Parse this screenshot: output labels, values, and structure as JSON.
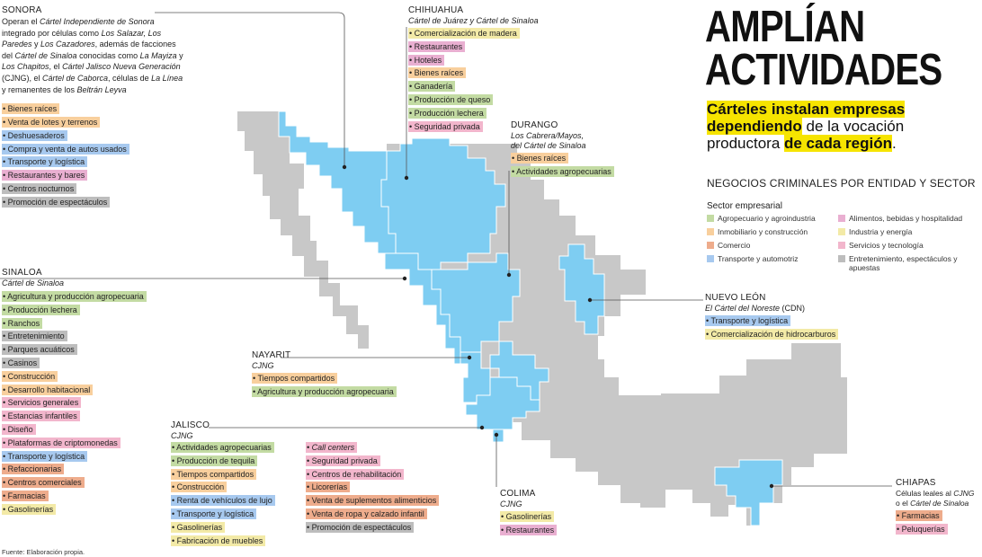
{
  "headline": {
    "title_line1": "AMPLÍAN",
    "title_line2": "ACTIVIDADES",
    "sub_hl1": "Cárteles instalan empresas",
    "sub_hl2": "dependiendo",
    "sub_mid": " de la vocación productora ",
    "sub_hl3": "de cada región",
    "sub_end": "."
  },
  "legend": {
    "section_title": "NEGOCIOS CRIMINALES POR ENTIDAD Y SECTOR",
    "title": "Sector empresarial",
    "items": [
      {
        "label": "Agropecuario y agroindustria",
        "color": "#c3dba3"
      },
      {
        "label": "Inmobiliario y construcción",
        "color": "#f8cf9d"
      },
      {
        "label": "Comercio",
        "color": "#eeac8c"
      },
      {
        "label": "Transporte y automotriz",
        "color": "#a7c9ef"
      },
      {
        "label": "Alimentos, bebidas y hospitalidad",
        "color": "#e9afd1"
      },
      {
        "label": "Industria y energía",
        "color": "#f3eaa7"
      },
      {
        "label": "Servicios y tecnología",
        "color": "#f2b6cc"
      },
      {
        "label": "Entretenimiento, espectáculos y apuestas",
        "color": "#bdbdbd"
      }
    ]
  },
  "colors": {
    "highlight_state": "#7ecdf2",
    "other_state": "#c8c8c8",
    "headline_highlight": "#f6e400"
  },
  "regions": {
    "sonora": {
      "name": "SONORA",
      "desc": [
        {
          "t": "Operan el "
        },
        {
          "t": "Cártel Independiente de Sonora",
          "i": true
        },
        {
          "t": " integrado por células como "
        },
        {
          "t": "Los Salazar, Los Paredes",
          "i": true
        },
        {
          "t": " y "
        },
        {
          "t": "Los Cazadores",
          "i": true
        },
        {
          "t": ", además de facciones del "
        },
        {
          "t": "Cártel de Sinaloa",
          "i": true
        },
        {
          "t": " conocidas como "
        },
        {
          "t": "La Mayiza",
          "i": true
        },
        {
          "t": " y "
        },
        {
          "t": "Los Chapitos",
          "i": true
        },
        {
          "t": ", el "
        },
        {
          "t": "Cártel Jalisco Nueva Generación",
          "i": true
        },
        {
          "t": " (CJNG), el "
        },
        {
          "t": "Cártel de Caborca",
          "i": true
        },
        {
          "t": ", células de "
        },
        {
          "t": "La Línea",
          "i": true
        },
        {
          "t": " y remanentes de los "
        },
        {
          "t": "Beltrán Leyva",
          "i": true
        }
      ],
      "tags": [
        {
          "label": "Bienes raíces",
          "sector": "inmo"
        },
        {
          "label": "Venta de lotes y terrenos",
          "sector": "inmo"
        },
        {
          "label": "Deshuesaderos",
          "sector": "trans"
        },
        {
          "label": "Compra y venta de autos usados",
          "sector": "trans"
        },
        {
          "label": "Transporte y logística",
          "sector": "trans"
        },
        {
          "label": "Restaurantes y bares",
          "sector": "ali"
        },
        {
          "label": "Centros nocturnos",
          "sector": "ent"
        },
        {
          "label": "Promoción de espectáculos",
          "sector": "ent"
        }
      ]
    },
    "chihuahua": {
      "name": "CHIHUAHUA",
      "cartel": "Cártel de Juárez y Cártel de Sinaloa",
      "tags": [
        {
          "label": "Comercialización de madera",
          "sector": "ind"
        },
        {
          "label": "Restaurantes",
          "sector": "ali"
        },
        {
          "label": "Hoteles",
          "sector": "ali"
        },
        {
          "label": "Bienes raíces",
          "sector": "inmo"
        },
        {
          "label": "Ganadería",
          "sector": "agro"
        },
        {
          "label": "Producción de queso",
          "sector": "agro"
        },
        {
          "label": "Producción lechera",
          "sector": "agro"
        },
        {
          "label": "Seguridad privada",
          "sector": "serv"
        }
      ]
    },
    "durango": {
      "name": "DURANGO",
      "cartel_lines": [
        "Los Cabrera/Mayos,",
        "del Cártel de Sinaloa"
      ],
      "tags": [
        {
          "label": "Bienes raíces",
          "sector": "inmo"
        },
        {
          "label": "Actividades agropecuarias",
          "sector": "agro"
        }
      ]
    },
    "sinaloa": {
      "name": "SINALOA",
      "cartel": "Cártel de Sinaloa",
      "tags": [
        {
          "label": "Agricultura y producción agropecuaria",
          "sector": "agro"
        },
        {
          "label": "Producción lechera",
          "sector": "agro"
        },
        {
          "label": "Ranchos",
          "sector": "agro"
        },
        {
          "label": "Entretenimiento",
          "sector": "ent"
        },
        {
          "label": "Parques acuáticos",
          "sector": "ent"
        },
        {
          "label": "Casinos",
          "sector": "ent"
        },
        {
          "label": "Construcción",
          "sector": "inmo"
        },
        {
          "label": "Desarrollo habitacional",
          "sector": "inmo"
        },
        {
          "label": "Servicios generales",
          "sector": "serv"
        },
        {
          "label": "Estancias infantiles",
          "sector": "serv"
        },
        {
          "label": "Diseño",
          "sector": "serv"
        },
        {
          "label": "Plataformas de criptomonedas",
          "sector": "serv"
        },
        {
          "label": "Transporte y logística",
          "sector": "trans"
        },
        {
          "label": "Refaccionarias",
          "sector": "com"
        },
        {
          "label": "Centros comerciales",
          "sector": "com"
        },
        {
          "label": "Farmacias",
          "sector": "com"
        },
        {
          "label": "Gasolinerías",
          "sector": "ind"
        }
      ]
    },
    "nayarit": {
      "name": "NAYARIT",
      "cartel": "CJNG",
      "tags": [
        {
          "label": "Tiempos compartidos",
          "sector": "inmo"
        },
        {
          "label": "Agricultura y producción agropecuaria",
          "sector": "agro"
        }
      ]
    },
    "jalisco": {
      "name": "JALISCO",
      "cartel": "CJNG",
      "tags_col1": [
        {
          "label": "Actividades agropecuarias",
          "sector": "agro"
        },
        {
          "label": "Producción de tequila",
          "sector": "agro"
        },
        {
          "label": "Tiempos compartidos",
          "sector": "inmo"
        },
        {
          "label": "Construcción",
          "sector": "inmo"
        },
        {
          "label": "Renta de vehículos de lujo",
          "sector": "trans"
        },
        {
          "label": "Transporte y logística",
          "sector": "trans"
        },
        {
          "label": "Gasolinerías",
          "sector": "ind"
        },
        {
          "label": "Fabricación de muebles",
          "sector": "ind"
        }
      ],
      "tags_col2": [
        {
          "label": "Call centers",
          "sector": "serv",
          "italic": true
        },
        {
          "label": "Seguridad privada",
          "sector": "serv"
        },
        {
          "label": "Centros de rehabilitación",
          "sector": "serv"
        },
        {
          "label": "Licorerías",
          "sector": "com"
        },
        {
          "label": "Venta de suplementos alimenticios",
          "sector": "com"
        },
        {
          "label": "Venta de ropa y calzado infantil",
          "sector": "com"
        },
        {
          "label": "Promoción de espectáculos",
          "sector": "ent"
        }
      ]
    },
    "colima": {
      "name": "COLIMA",
      "cartel": "CJNG",
      "tags": [
        {
          "label": "Gasolinerías",
          "sector": "ind"
        },
        {
          "label": "Restaurantes",
          "sector": "ali"
        }
      ]
    },
    "nuevo_leon": {
      "name": "NUEVO LEÓN",
      "cartel_parts": [
        {
          "t": "El Cártel del Noreste",
          "i": true
        },
        {
          "t": " (CDN)"
        }
      ],
      "tags": [
        {
          "label": "Transporte y logística",
          "sector": "trans"
        },
        {
          "label": "Comercialización de hidrocarburos",
          "sector": "ind"
        }
      ]
    },
    "chiapas": {
      "name": "CHIAPAS",
      "cartel_parts": [
        {
          "t": "Células leales al "
        },
        {
          "t": "CJNG",
          "i": true
        },
        {
          "t": " o el "
        },
        {
          "t": "Cártel de Sinaloa",
          "i": true
        }
      ],
      "tags": [
        {
          "label": "Farmacias",
          "sector": "com"
        },
        {
          "label": "Peluquerías",
          "sector": "serv"
        }
      ]
    }
  },
  "source": "Fuente: Elaboración propia."
}
